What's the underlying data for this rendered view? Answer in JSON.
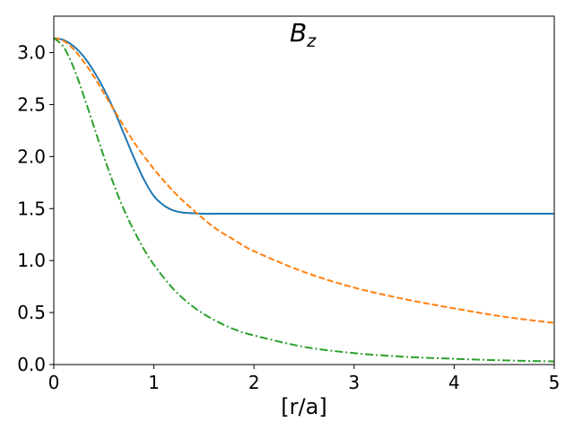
{
  "chart_data": {
    "type": "line",
    "title": "B",
    "title_subscript": "z",
    "xlabel": "[r/a]",
    "ylabel": "",
    "xlim": [
      0,
      5
    ],
    "ylim": [
      0,
      3.35
    ],
    "xticks": [
      0,
      1,
      2,
      3,
      4,
      5
    ],
    "xtick_labels": [
      "0",
      "1",
      "2",
      "3",
      "4",
      "5"
    ],
    "yticks": [
      0,
      0.5,
      1.0,
      1.5,
      2.0,
      2.5,
      3.0
    ],
    "ytick_labels": [
      "0.0",
      "0.5",
      "1.0",
      "1.5",
      "2.0",
      "2.5",
      "3.0"
    ],
    "grid": false,
    "legend": "none",
    "series": [
      {
        "color": "#1f77b4",
        "style": "solid",
        "x": [
          0,
          0.1,
          0.2,
          0.3,
          0.4,
          0.5,
          0.6,
          0.7,
          0.8,
          0.9,
          1.0,
          1.1,
          1.2,
          1.3,
          1.4,
          1.5,
          1.6,
          2.0,
          3.0,
          4.0,
          5.0
        ],
        "y": [
          3.14,
          3.12,
          3.06,
          2.96,
          2.82,
          2.65,
          2.45,
          2.22,
          1.99,
          1.78,
          1.62,
          1.53,
          1.48,
          1.46,
          1.455,
          1.45,
          1.45,
          1.45,
          1.45,
          1.45,
          1.45
        ]
      },
      {
        "color": "#ff7f0e",
        "style": "dashed",
        "x": [
          0,
          0.1,
          0.2,
          0.3,
          0.4,
          0.5,
          0.6,
          0.8,
          1.0,
          1.2,
          1.4,
          1.6,
          1.8,
          2.0,
          2.5,
          3.0,
          3.5,
          4.0,
          4.5,
          5.0
        ],
        "y": [
          3.14,
          3.11,
          3.03,
          2.91,
          2.77,
          2.61,
          2.45,
          2.14,
          1.88,
          1.66,
          1.48,
          1.32,
          1.2,
          1.09,
          0.89,
          0.74,
          0.63,
          0.54,
          0.46,
          0.4
        ]
      },
      {
        "color": "#2ca02c",
        "style": "dashdot",
        "x": [
          0,
          0.1,
          0.2,
          0.3,
          0.4,
          0.5,
          0.6,
          0.7,
          0.8,
          0.9,
          1.0,
          1.2,
          1.4,
          1.6,
          1.8,
          2.0,
          2.5,
          3.0,
          3.5,
          4.0,
          4.5,
          5.0
        ],
        "y": [
          3.14,
          3.05,
          2.85,
          2.58,
          2.29,
          2.0,
          1.73,
          1.49,
          1.29,
          1.11,
          0.96,
          0.72,
          0.55,
          0.43,
          0.34,
          0.28,
          0.17,
          0.11,
          0.075,
          0.055,
          0.04,
          0.03
        ]
      }
    ]
  }
}
